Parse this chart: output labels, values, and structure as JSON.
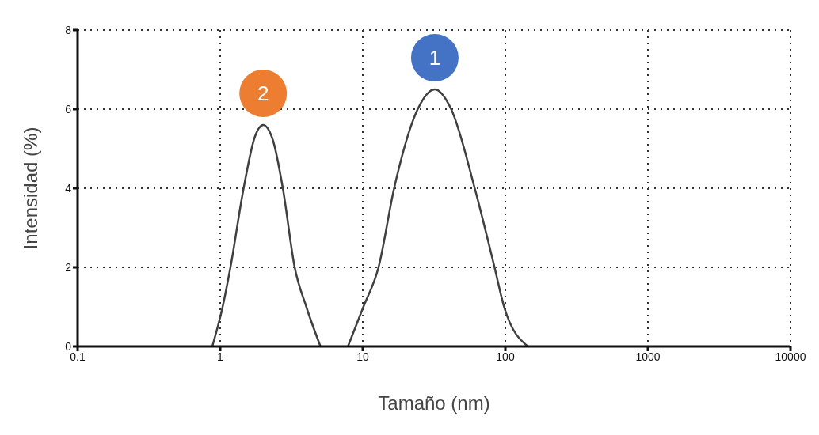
{
  "chart_data": {
    "type": "line",
    "xlabel": "Tamaño (nm)",
    "ylabel": "Intensidad (%)",
    "log": "x",
    "xlim": [
      0.1,
      10000
    ],
    "xticks": [
      0.1,
      1,
      10,
      100,
      1000,
      10000
    ],
    "ylim": [
      0,
      8
    ],
    "yticks": [
      0,
      2,
      4,
      6,
      8
    ],
    "grid": true,
    "line_style": "solid",
    "marker": "none",
    "series": [
      {
        "color": "#404040",
        "x": [
          0.88,
          1.04,
          1.18,
          1.46,
          1.75,
          2.0,
          2.35,
          2.75,
          3.33,
          4.02,
          5.05
        ],
        "values": [
          0,
          1,
          2,
          4,
          5.3,
          5.6,
          5.2,
          4,
          2,
          1,
          0
        ]
      },
      {
        "color": "#404040",
        "x": [
          7.87,
          10.1,
          12.9,
          16.6,
          24.3,
          32,
          41.7,
          61,
          84,
          98,
          144
        ],
        "values": [
          0,
          1,
          2,
          4,
          6,
          6.5,
          6,
          4,
          2,
          1,
          0
        ]
      }
    ],
    "annotations": [
      {
        "text": "2",
        "x": 2.0,
        "y": 5.6
      },
      {
        "text": "1",
        "x": 32,
        "y": 6.5
      }
    ]
  }
}
